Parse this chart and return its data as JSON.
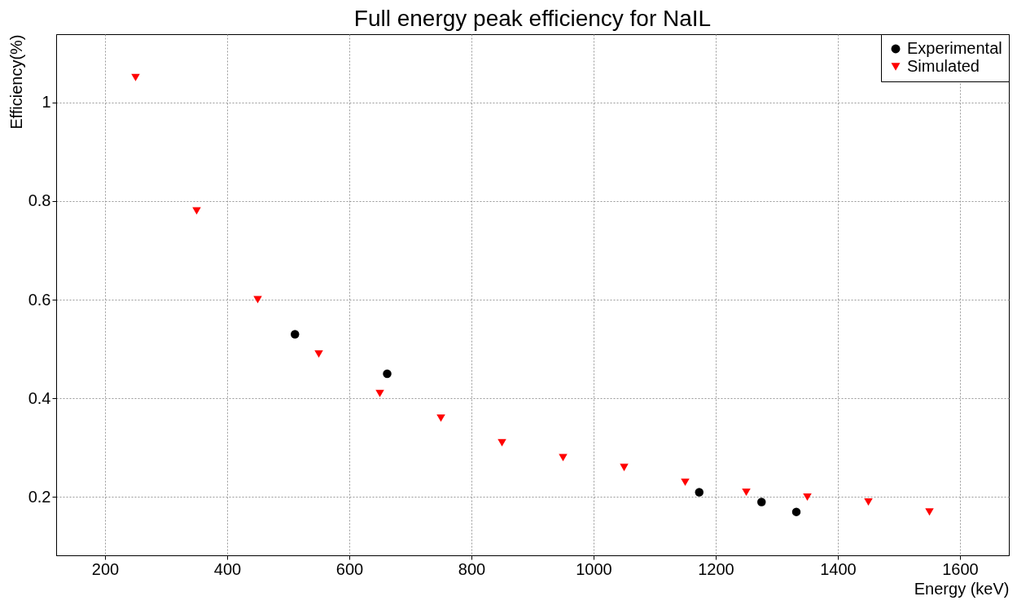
{
  "chart_data": {
    "type": "scatter",
    "title": "Full energy peak efficiency for NaIL",
    "xlabel": "Energy (keV)",
    "ylabel": "Efficiency(%)",
    "xlim": [
      120,
      1680
    ],
    "xticks": [
      200,
      400,
      600,
      800,
      1000,
      1200,
      1400,
      1600
    ],
    "ylim": [
      0.082,
      1.138
    ],
    "yticks": [
      0.2,
      0.4,
      0.6,
      0.8,
      1
    ],
    "grid": true,
    "legend": "top right",
    "series": [
      {
        "name": "Experimental",
        "color": "#000000",
        "marker": "circle",
        "x": [
          511,
          662,
          1173,
          1275,
          1332
        ],
        "values": [
          0.53,
          0.45,
          0.21,
          0.19,
          0.17
        ]
      },
      {
        "name": "Simulated",
        "color": "#ff0000",
        "marker": "triangle",
        "x": [
          250,
          350,
          450,
          550,
          650,
          750,
          850,
          950,
          1050,
          1150,
          1250,
          1350,
          1450,
          1550
        ],
        "values": [
          1.05,
          0.78,
          0.6,
          0.49,
          0.41,
          0.36,
          0.31,
          0.28,
          0.26,
          0.23,
          0.21,
          0.2,
          0.19,
          0.17
        ]
      }
    ]
  }
}
